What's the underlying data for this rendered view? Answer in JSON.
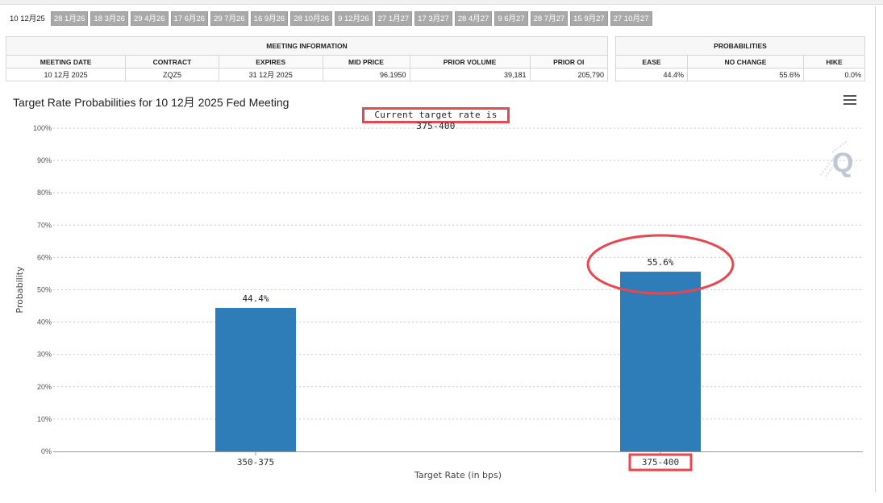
{
  "tabs": [
    {
      "label": "10 12月25",
      "active": true
    },
    {
      "label": "28 1月26"
    },
    {
      "label": "18 3月26"
    },
    {
      "label": "29 4月26"
    },
    {
      "label": "17 6月26"
    },
    {
      "label": "29 7月26"
    },
    {
      "label": "16 9月26"
    },
    {
      "label": "28 10月26"
    },
    {
      "label": "9 12月26"
    },
    {
      "label": "27 1月27"
    },
    {
      "label": "17 3月27"
    },
    {
      "label": "28 4月27"
    },
    {
      "label": "9 6月27"
    },
    {
      "label": "28 7月27"
    },
    {
      "label": "15 9月27"
    },
    {
      "label": "27 10月27"
    }
  ],
  "meeting_info": {
    "section_title": "MEETING INFORMATION",
    "headers": [
      "MEETING DATE",
      "CONTRACT",
      "EXPIRES",
      "MID PRICE",
      "PRIOR VOLUME",
      "PRIOR OI"
    ],
    "row": [
      "10 12月 2025",
      "ZQZ5",
      "31 12月 2025",
      "96.1950",
      "39,181",
      "205,790"
    ]
  },
  "probabilities": {
    "section_title": "PROBABILITIES",
    "headers": [
      "EASE",
      "NO CHANGE",
      "HIKE"
    ],
    "row": [
      "44.4%",
      "55.6%",
      "0.0%"
    ]
  },
  "chart_title": "Target Rate Probabilities for 10 12月 2025 Fed Meeting",
  "current_rate_label": "Current target rate is 375-400",
  "chart_data": {
    "type": "bar",
    "title": "Target Rate Probabilities for 10 12月 2025 Fed Meeting",
    "categories": [
      "350-375",
      "375-400"
    ],
    "values": [
      44.4,
      55.6
    ],
    "data_labels": [
      "44.4%",
      "55.6%"
    ],
    "xlabel": "Target Rate (in bps)",
    "ylabel": "Probability",
    "ylim": [
      0,
      100
    ],
    "yticks": [
      "0%",
      "10%",
      "20%",
      "30%",
      "40%",
      "50%",
      "60%",
      "70%",
      "80%",
      "90%",
      "100%"
    ],
    "grid": true,
    "bar_color": "#2e7cb8",
    "highlight_color": "#e8474f"
  }
}
